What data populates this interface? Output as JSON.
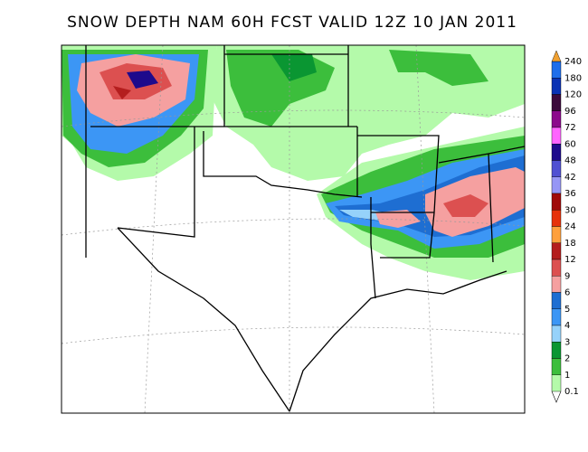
{
  "header": {
    "title": "SNOW DEPTH NAM 60H FCST VALID 12Z 10 JAN 2011"
  },
  "legend": {
    "labels": [
      "240",
      "180",
      "120",
      "96",
      "72",
      "60",
      "48",
      "42",
      "36",
      "30",
      "24",
      "18",
      "12",
      "9",
      "6",
      "5",
      "4",
      "3",
      "2",
      "1",
      "0.1"
    ],
    "colors": [
      "#1e6eeb",
      "#0a32b4",
      "#3c0a3c",
      "#8c0a8c",
      "#ff64ff",
      "#1e0a8c",
      "#5050d2",
      "#9696f5",
      "#a00a0a",
      "#e6320a",
      "#ffa03c",
      "#b41e1e",
      "#dc5050",
      "#f5a0a0",
      "#1e6ed2",
      "#3c96f5",
      "#96d2fa",
      "#0a9632",
      "#3cbe3c",
      "#b4faaa"
    ],
    "cap_color": "#f0a030"
  }
}
